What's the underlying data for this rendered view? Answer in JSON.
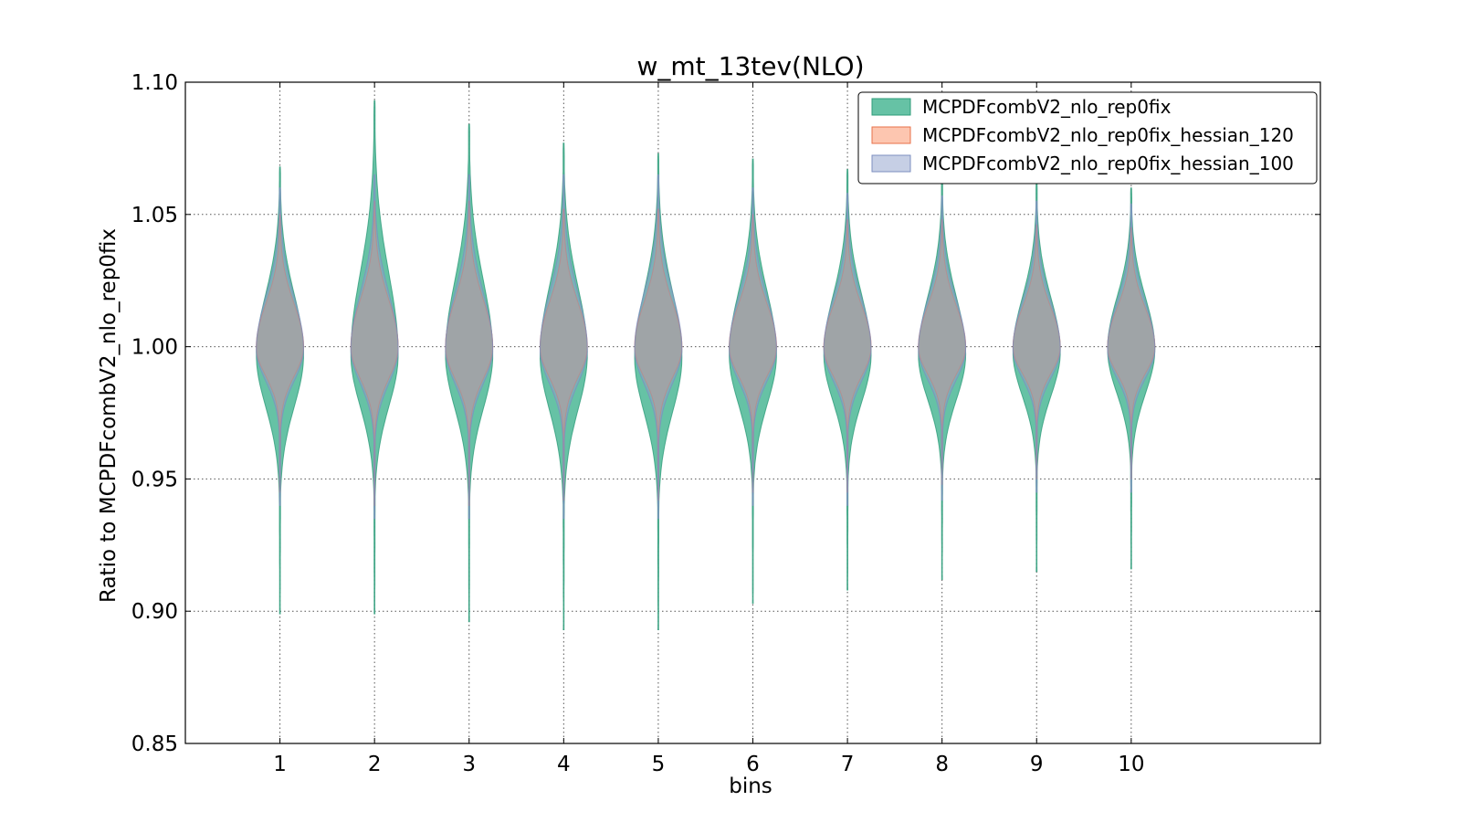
{
  "chart_data": {
    "type": "violin",
    "title": "w_mt_13tev(NLO)",
    "xlabel": "bins",
    "ylabel": "Ratio to MCPDFcombV2_nlo_rep0fix",
    "xlim": [
      0,
      12
    ],
    "ylim": [
      0.85,
      1.1
    ],
    "x_ticks": [
      1,
      2,
      3,
      4,
      5,
      6,
      7,
      8,
      9,
      10
    ],
    "y_ticks": [
      0.85,
      0.9,
      0.95,
      1.0,
      1.05,
      1.1
    ],
    "y_tick_labels": [
      "0.85",
      "0.90",
      "0.95",
      "1.00",
      "1.05",
      "1.10"
    ],
    "grid": true,
    "legend_position": "top-right",
    "series": [
      {
        "name": "MCPDFcombV2_nlo_rep0fix",
        "color": "#66c2a5",
        "edge_color": "#2f9c7a",
        "alpha": 1.0,
        "bins": [
          {
            "x": 1,
            "min": 0.899,
            "max": 1.068,
            "center": 0.997
          },
          {
            "x": 2,
            "min": 0.899,
            "max": 1.093,
            "center": 0.997
          },
          {
            "x": 3,
            "min": 0.896,
            "max": 1.084,
            "center": 0.997
          },
          {
            "x": 4,
            "min": 0.893,
            "max": 1.077,
            "center": 0.997
          },
          {
            "x": 5,
            "min": 0.893,
            "max": 1.073,
            "center": 0.996
          },
          {
            "x": 6,
            "min": 0.903,
            "max": 1.071,
            "center": 0.997
          },
          {
            "x": 7,
            "min": 0.908,
            "max": 1.067,
            "center": 0.997
          },
          {
            "x": 8,
            "min": 0.912,
            "max": 1.065,
            "center": 0.997
          },
          {
            "x": 9,
            "min": 0.915,
            "max": 1.062,
            "center": 0.998
          },
          {
            "x": 10,
            "min": 0.916,
            "max": 1.06,
            "center": 0.999
          }
        ]
      },
      {
        "name": "MCPDFcombV2_nlo_rep0fix_hessian_120",
        "color": "#fc8d62",
        "edge_color": "#e8714a",
        "alpha": 0.5,
        "bins": [
          {
            "x": 1,
            "min": 0.945,
            "max": 1.05,
            "center": 1.0
          },
          {
            "x": 2,
            "min": 0.94,
            "max": 1.055,
            "center": 1.0
          },
          {
            "x": 3,
            "min": 0.94,
            "max": 1.055,
            "center": 1.0
          },
          {
            "x": 4,
            "min": 0.942,
            "max": 1.052,
            "center": 1.0
          },
          {
            "x": 5,
            "min": 0.942,
            "max": 1.052,
            "center": 1.0
          },
          {
            "x": 6,
            "min": 0.945,
            "max": 1.05,
            "center": 1.0
          },
          {
            "x": 7,
            "min": 0.945,
            "max": 1.048,
            "center": 1.0
          },
          {
            "x": 8,
            "min": 0.948,
            "max": 1.048,
            "center": 1.0
          },
          {
            "x": 9,
            "min": 0.95,
            "max": 1.046,
            "center": 1.0
          },
          {
            "x": 10,
            "min": 0.95,
            "max": 1.045,
            "center": 1.0
          }
        ]
      },
      {
        "name": "MCPDFcombV2_nlo_rep0fix_hessian_100",
        "color": "#8da0cb",
        "edge_color": "#7d8fc0",
        "alpha": 0.5,
        "bins": [
          {
            "x": 1,
            "min": 0.94,
            "max": 1.06,
            "center": 0.999
          },
          {
            "x": 2,
            "min": 0.935,
            "max": 1.065,
            "center": 0.999
          },
          {
            "x": 3,
            "min": 0.935,
            "max": 1.065,
            "center": 0.999
          },
          {
            "x": 4,
            "min": 0.935,
            "max": 1.065,
            "center": 0.999
          },
          {
            "x": 5,
            "min": 0.935,
            "max": 1.065,
            "center": 0.999
          },
          {
            "x": 6,
            "min": 0.94,
            "max": 1.06,
            "center": 0.999
          },
          {
            "x": 7,
            "min": 0.94,
            "max": 1.058,
            "center": 0.999
          },
          {
            "x": 8,
            "min": 0.942,
            "max": 1.057,
            "center": 0.999
          },
          {
            "x": 9,
            "min": 0.945,
            "max": 1.055,
            "center": 0.999
          },
          {
            "x": 10,
            "min": 0.945,
            "max": 1.054,
            "center": 0.999
          }
        ]
      }
    ]
  }
}
